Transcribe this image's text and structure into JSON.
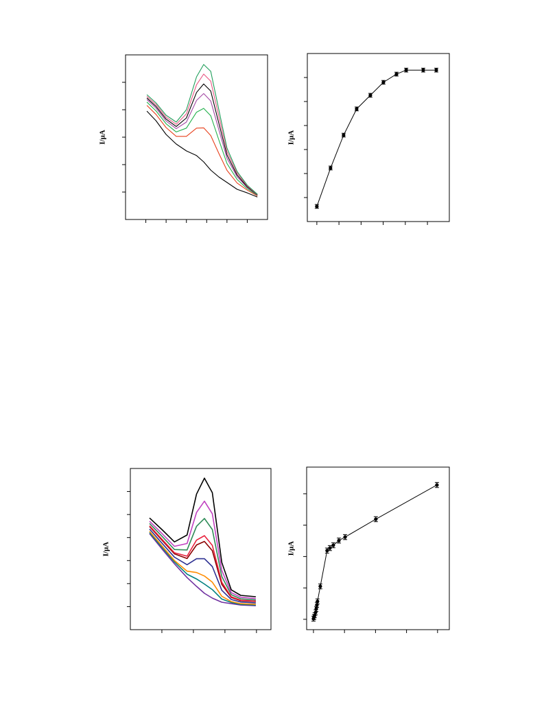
{
  "chart_data": [
    {
      "type": "line",
      "ylabel": "I/μA",
      "x": [
        1.05,
        1.5,
        2,
        2.5,
        3,
        3.5,
        3.85,
        4.2,
        4.6,
        5,
        5.5,
        6,
        6.5
      ],
      "xlim": [
        0,
        7
      ],
      "xticks": [
        1,
        2,
        3,
        4,
        5,
        6
      ],
      "ylim": [
        0,
        6
      ],
      "yticks": [
        1,
        2,
        3,
        4,
        5
      ],
      "series": [
        {
          "color": "#000000",
          "values": [
            3.95,
            3.6,
            3.1,
            2.75,
            2.5,
            2.33,
            2.1,
            1.8,
            1.55,
            1.35,
            1.1,
            0.97,
            0.82
          ]
        },
        {
          "color": "#e8401c",
          "values": [
            4.16,
            3.83,
            3.35,
            3.03,
            3.03,
            3.33,
            3.34,
            3.06,
            2.41,
            1.79,
            1.33,
            1.07,
            0.86
          ]
        },
        {
          "color": "#22b14c",
          "values": [
            4.28,
            3.96,
            3.49,
            3.19,
            3.33,
            3.91,
            4.05,
            3.78,
            2.9,
            2.04,
            1.46,
            1.12,
            0.88
          ]
        },
        {
          "color": "#a349a4",
          "values": [
            4.37,
            4.06,
            3.59,
            3.31,
            3.55,
            4.34,
            4.59,
            4.32,
            3.27,
            2.23,
            1.56,
            1.17,
            0.89
          ]
        },
        {
          "color": "#000000",
          "values": [
            4.43,
            4.12,
            3.66,
            3.39,
            3.7,
            4.63,
            4.94,
            4.68,
            3.51,
            2.35,
            1.62,
            1.19,
            0.9
          ]
        },
        {
          "color": "#e75480",
          "values": [
            4.49,
            4.19,
            3.73,
            3.47,
            3.85,
            4.91,
            5.3,
            5.04,
            3.76,
            2.48,
            1.69,
            1.22,
            0.91
          ]
        },
        {
          "color": "#1f9e5a",
          "values": [
            4.55,
            4.25,
            3.8,
            3.55,
            4.0,
            5.2,
            5.65,
            5.4,
            4.0,
            2.6,
            1.75,
            1.25,
            0.92
          ]
        }
      ]
    },
    {
      "type": "errorbar",
      "ylabel": "I/μA",
      "x": [
        0,
        0.62,
        1.21,
        1.8,
        2.42,
        3.01,
        3.6,
        4.04,
        4.81,
        5.4
      ],
      "values": [
        -0.37,
        1.23,
        2.6,
        3.69,
        4.26,
        4.8,
        5.14,
        5.31,
        5.31,
        5.31
      ],
      "errors": [
        0.08,
        0.08,
        0.08,
        0.08,
        0.08,
        0.08,
        0.08,
        0.08,
        0.08,
        0.08
      ],
      "color": "#000000",
      "xlim": [
        -0.43,
        5.99
      ],
      "xticks": [
        0,
        1,
        2,
        3,
        4,
        5
      ],
      "ylim": [
        -1,
        6
      ],
      "yticks": [
        0,
        1,
        2,
        3,
        4,
        5
      ]
    },
    {
      "type": "line",
      "ylabel": "I/μA",
      "x": [
        0.61,
        1.0,
        1.4,
        1.8,
        2.1,
        2.35,
        2.6,
        2.9,
        3.2,
        3.5,
        3.98
      ],
      "xlim": [
        0,
        4.46
      ],
      "xticks": [
        1,
        2,
        3,
        4
      ],
      "ylim": [
        0,
        7
      ],
      "yticks": [
        1,
        2,
        3,
        4,
        5,
        6
      ],
      "series": [
        {
          "color": "#7030a0",
          "values": [
            4.17,
            3.51,
            2.86,
            2.26,
            1.88,
            1.58,
            1.37,
            1.19,
            1.13,
            1.07,
            1.04
          ]
        },
        {
          "color": "#008080",
          "values": [
            4.22,
            3.58,
            2.94,
            2.41,
            2.2,
            1.98,
            1.74,
            1.33,
            1.18,
            1.1,
            1.07
          ]
        },
        {
          "color": "#ff8c00",
          "values": [
            4.27,
            3.64,
            3.0,
            2.54,
            2.48,
            2.33,
            2.06,
            1.45,
            1.22,
            1.13,
            1.1
          ]
        },
        {
          "color": "#2e3192",
          "values": [
            4.37,
            3.76,
            3.15,
            2.82,
            3.08,
            3.08,
            2.74,
            1.71,
            1.31,
            1.2,
            1.16
          ]
        },
        {
          "color": "#8b0000",
          "values": [
            4.48,
            3.89,
            3.29,
            3.09,
            3.68,
            3.83,
            3.43,
            1.97,
            1.4,
            1.26,
            1.22
          ]
        },
        {
          "color": "#e8203c",
          "values": [
            4.51,
            3.93,
            3.34,
            3.19,
            3.89,
            4.08,
            3.66,
            2.06,
            1.43,
            1.28,
            1.24
          ]
        },
        {
          "color": "#2e8b57",
          "values": [
            4.61,
            4.06,
            3.48,
            3.46,
            4.49,
            4.83,
            4.35,
            2.31,
            1.52,
            1.34,
            1.29
          ]
        },
        {
          "color": "#c040c0",
          "values": [
            4.71,
            4.18,
            3.62,
            3.74,
            5.09,
            5.58,
            5.03,
            2.57,
            1.61,
            1.41,
            1.35
          ]
        },
        {
          "color": "#000000",
          "values": [
            4.85,
            4.35,
            3.81,
            4.11,
            5.89,
            6.58,
            5.95,
            2.92,
            1.73,
            1.49,
            1.43
          ]
        }
      ]
    },
    {
      "type": "errorbar",
      "ylabel": "I/μA",
      "x": [
        0,
        0.02,
        0.04,
        0.07,
        0.09,
        0.11,
        0.13,
        0.22,
        0.44,
        0.53,
        0.64,
        0.82,
        1.02,
        2.01,
        3.98
      ],
      "values": [
        0.02,
        0.07,
        0.13,
        0.22,
        0.33,
        0.46,
        0.57,
        1.05,
        2.19,
        2.27,
        2.36,
        2.51,
        2.62,
        3.19,
        4.28
      ],
      "errors": [
        0.08,
        0.08,
        0.08,
        0.08,
        0.08,
        0.08,
        0.08,
        0.08,
        0.08,
        0.08,
        0.08,
        0.08,
        0.08,
        0.08,
        0.08
      ],
      "color": "#000000",
      "xlim": [
        -0.22,
        4.38
      ],
      "xticks": [
        0,
        1,
        2,
        3,
        4
      ],
      "ylim": [
        -0.33,
        4.85
      ],
      "yticks": [
        0,
        1,
        2,
        3,
        4
      ]
    }
  ]
}
